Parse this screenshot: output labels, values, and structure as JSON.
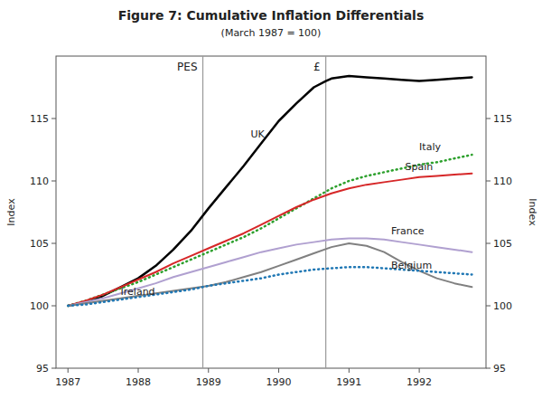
{
  "chart_data": {
    "type": "line",
    "title": "Figure 7: Cumulative Inflation Differentials",
    "subtitle": "(March 1987 = 100)",
    "ylabel": "Index",
    "y2label": "Index",
    "xlim": [
      1986.83,
      1992.95
    ],
    "xticks": [
      1987,
      1988,
      1989,
      1990,
      1991,
      1992
    ],
    "ylim": [
      95,
      120
    ],
    "yticks": [
      95,
      100,
      105,
      110,
      115
    ],
    "y2lim": [
      95,
      120
    ],
    "y2ticks": [
      95,
      100,
      105,
      110,
      115
    ],
    "grid": false,
    "vlines": [
      {
        "value": 1988.92,
        "label": "PES"
      },
      {
        "value": 1990.67,
        "label": "£"
      }
    ],
    "series": [
      {
        "name": "UK",
        "color": "#000000",
        "line_style": "solid",
        "x": [
          1987.0,
          1987.25,
          1987.5,
          1987.75,
          1988.0,
          1988.25,
          1988.5,
          1988.75,
          1989.0,
          1989.25,
          1989.5,
          1989.75,
          1990.0,
          1990.25,
          1990.5,
          1990.67,
          1990.75,
          1991.0,
          1991.25,
          1991.5,
          1991.75,
          1992.0,
          1992.25,
          1992.5,
          1992.75
        ],
        "values": [
          100,
          100.3,
          100.8,
          101.5,
          102.2,
          103.2,
          104.5,
          106.0,
          107.8,
          109.5,
          111.2,
          113.0,
          114.8,
          116.2,
          117.5,
          118.0,
          118.2,
          118.4,
          118.3,
          118.2,
          118.1,
          118.0,
          118.1,
          118.2,
          118.3
        ]
      },
      {
        "name": "Italy",
        "color": "#2ca02c",
        "line_style": "dotted",
        "x": [
          1987.0,
          1987.25,
          1987.5,
          1987.75,
          1988.0,
          1988.25,
          1988.5,
          1988.75,
          1989.0,
          1989.25,
          1989.5,
          1989.75,
          1990.0,
          1990.25,
          1990.5,
          1990.75,
          1991.0,
          1991.25,
          1991.5,
          1991.75,
          1992.0,
          1992.25,
          1992.5,
          1992.75
        ],
        "values": [
          100,
          100.4,
          100.9,
          101.4,
          101.9,
          102.5,
          103.1,
          103.7,
          104.3,
          104.9,
          105.5,
          106.2,
          107.0,
          107.8,
          108.6,
          109.4,
          110.0,
          110.4,
          110.7,
          111.0,
          111.3,
          111.5,
          111.8,
          112.1
        ]
      },
      {
        "name": "Spain",
        "color": "#d62728",
        "line_style": "solid",
        "x": [
          1987.0,
          1987.25,
          1987.5,
          1987.75,
          1988.0,
          1988.25,
          1988.5,
          1988.75,
          1989.0,
          1989.25,
          1989.5,
          1989.75,
          1990.0,
          1990.25,
          1990.5,
          1990.75,
          1991.0,
          1991.25,
          1991.5,
          1991.75,
          1992.0,
          1992.25,
          1992.5,
          1992.75
        ],
        "values": [
          100,
          100.4,
          100.9,
          101.5,
          102.1,
          102.7,
          103.4,
          104.0,
          104.6,
          105.2,
          105.8,
          106.5,
          107.2,
          107.9,
          108.5,
          109.0,
          109.4,
          109.7,
          109.9,
          110.1,
          110.3,
          110.4,
          110.5,
          110.6
        ]
      },
      {
        "name": "France",
        "color": "#b0a0d0",
        "line_style": "solid",
        "x": [
          1987.0,
          1987.25,
          1987.5,
          1987.75,
          1988.0,
          1988.25,
          1988.5,
          1988.75,
          1989.0,
          1989.25,
          1989.5,
          1989.75,
          1990.0,
          1990.25,
          1990.5,
          1990.75,
          1991.0,
          1991.25,
          1991.5,
          1991.75,
          1992.0,
          1992.25,
          1992.5,
          1992.75
        ],
        "values": [
          100,
          100.3,
          100.6,
          101.0,
          101.4,
          101.8,
          102.3,
          102.7,
          103.1,
          103.5,
          103.9,
          104.3,
          104.6,
          104.9,
          105.1,
          105.3,
          105.4,
          105.4,
          105.3,
          105.1,
          104.9,
          104.7,
          104.5,
          104.3
        ]
      },
      {
        "name": "Belgium",
        "color": "#808080",
        "line_style": "solid",
        "x": [
          1987.0,
          1987.25,
          1987.5,
          1987.75,
          1988.0,
          1988.25,
          1988.5,
          1988.75,
          1989.0,
          1989.25,
          1989.5,
          1989.75,
          1990.0,
          1990.25,
          1990.5,
          1990.75,
          1991.0,
          1991.25,
          1991.5,
          1991.75,
          1992.0,
          1992.25,
          1992.5,
          1992.75
        ],
        "values": [
          100,
          100.2,
          100.4,
          100.6,
          100.8,
          101.0,
          101.2,
          101.4,
          101.6,
          101.9,
          102.3,
          102.7,
          103.2,
          103.7,
          104.2,
          104.7,
          105.0,
          104.8,
          104.3,
          103.5,
          102.8,
          102.2,
          101.8,
          101.5
        ]
      },
      {
        "name": "Ireland",
        "color": "#1f77b4",
        "line_style": "dotted",
        "x": [
          1987.0,
          1987.25,
          1987.5,
          1987.75,
          1988.0,
          1988.25,
          1988.5,
          1988.75,
          1989.0,
          1989.25,
          1989.5,
          1989.75,
          1990.0,
          1990.25,
          1990.5,
          1990.75,
          1991.0,
          1991.25,
          1991.5,
          1991.75,
          1992.0,
          1992.25,
          1992.5,
          1992.75
        ],
        "values": [
          100,
          100.1,
          100.3,
          100.5,
          100.7,
          100.9,
          101.1,
          101.3,
          101.6,
          101.8,
          102.0,
          102.2,
          102.5,
          102.7,
          102.9,
          103.0,
          103.1,
          103.1,
          103.0,
          102.9,
          102.8,
          102.7,
          102.6,
          102.5
        ]
      }
    ],
    "annotations": [
      {
        "text": "UK",
        "x": 1989.6,
        "y": 113.5
      },
      {
        "text": "Italy",
        "x": 1992.0,
        "y": 112.5
      },
      {
        "text": "Spain",
        "x": 1991.8,
        "y": 110.9
      },
      {
        "text": "France",
        "x": 1991.6,
        "y": 105.7
      },
      {
        "text": "Belgium",
        "x": 1991.6,
        "y": 103.0
      },
      {
        "text": "Ireland",
        "x": 1987.75,
        "y": 100.9
      }
    ]
  }
}
